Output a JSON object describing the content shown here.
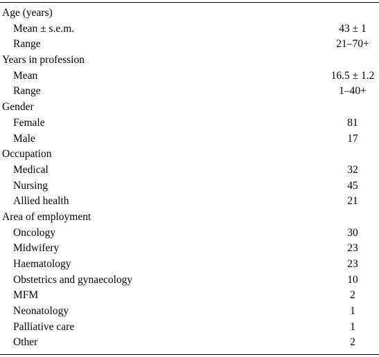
{
  "table": {
    "rows": [
      {
        "type": "section",
        "label": "Age (years)",
        "value": ""
      },
      {
        "type": "item",
        "label": "Mean ± s.e.m.",
        "value": "43 ± 1"
      },
      {
        "type": "item",
        "label": "Range",
        "value": "21–70+"
      },
      {
        "type": "section",
        "label": "Years in profession",
        "value": ""
      },
      {
        "type": "item",
        "label": "Mean",
        "value": "16.5 ± 1.2"
      },
      {
        "type": "item",
        "label": "Range",
        "value": "1–40+"
      },
      {
        "type": "section",
        "label": "Gender",
        "value": ""
      },
      {
        "type": "item",
        "label": "Female",
        "value": "81"
      },
      {
        "type": "item",
        "label": "Male",
        "value": "17"
      },
      {
        "type": "section",
        "label": "Occupation",
        "value": ""
      },
      {
        "type": "item",
        "label": "Medical",
        "value": "32"
      },
      {
        "type": "item",
        "label": "Nursing",
        "value": "45"
      },
      {
        "type": "item",
        "label": "Allied health",
        "value": "21"
      },
      {
        "type": "section",
        "label": "Area of employment",
        "value": ""
      },
      {
        "type": "item",
        "label": "Oncology",
        "value": "30"
      },
      {
        "type": "item",
        "label": "Midwifery",
        "value": "23"
      },
      {
        "type": "item",
        "label": "Haematology",
        "value": "23"
      },
      {
        "type": "item",
        "label": "Obstetrics and gynaecology",
        "value": "10"
      },
      {
        "type": "item",
        "label": "MFM",
        "value": "2"
      },
      {
        "type": "item",
        "label": "Neonatology",
        "value": "1"
      },
      {
        "type": "item",
        "label": "Palliative care",
        "value": "1"
      },
      {
        "type": "item",
        "label": "Other",
        "value": "2"
      }
    ]
  }
}
